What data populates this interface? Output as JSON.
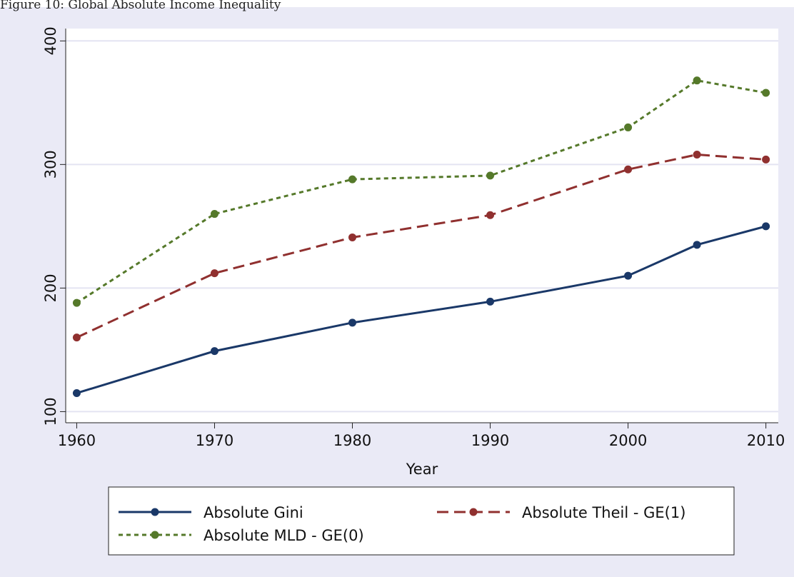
{
  "caption": "Figure 10: Global Absolute Income Inequality",
  "chart_data": {
    "type": "line",
    "x_label": "Year",
    "x": [
      1960,
      1970,
      1980,
      1990,
      2000,
      2005,
      2010
    ],
    "xlim": [
      1959.2,
      2010.9
    ],
    "xticks": [
      1960,
      1970,
      1980,
      1990,
      2000,
      2010
    ],
    "ylim": [
      91,
      410
    ],
    "yticks": [
      100,
      200,
      300,
      400
    ],
    "grid": true,
    "series": [
      {
        "name": "Absolute Gini",
        "color": "#1a3868",
        "style": "solid",
        "values": [
          115,
          149,
          172,
          189,
          210,
          235,
          250
        ]
      },
      {
        "name": "Absolute Theil - GE(1)",
        "color": "#90302f",
        "style": "dash",
        "values": [
          160,
          212,
          241,
          259,
          296,
          308,
          304
        ]
      },
      {
        "name": "Absolute MLD - GE(0)",
        "color": "#55792a",
        "style": "dot",
        "values": [
          188,
          260,
          288,
          291,
          330,
          368,
          358
        ]
      }
    ]
  }
}
